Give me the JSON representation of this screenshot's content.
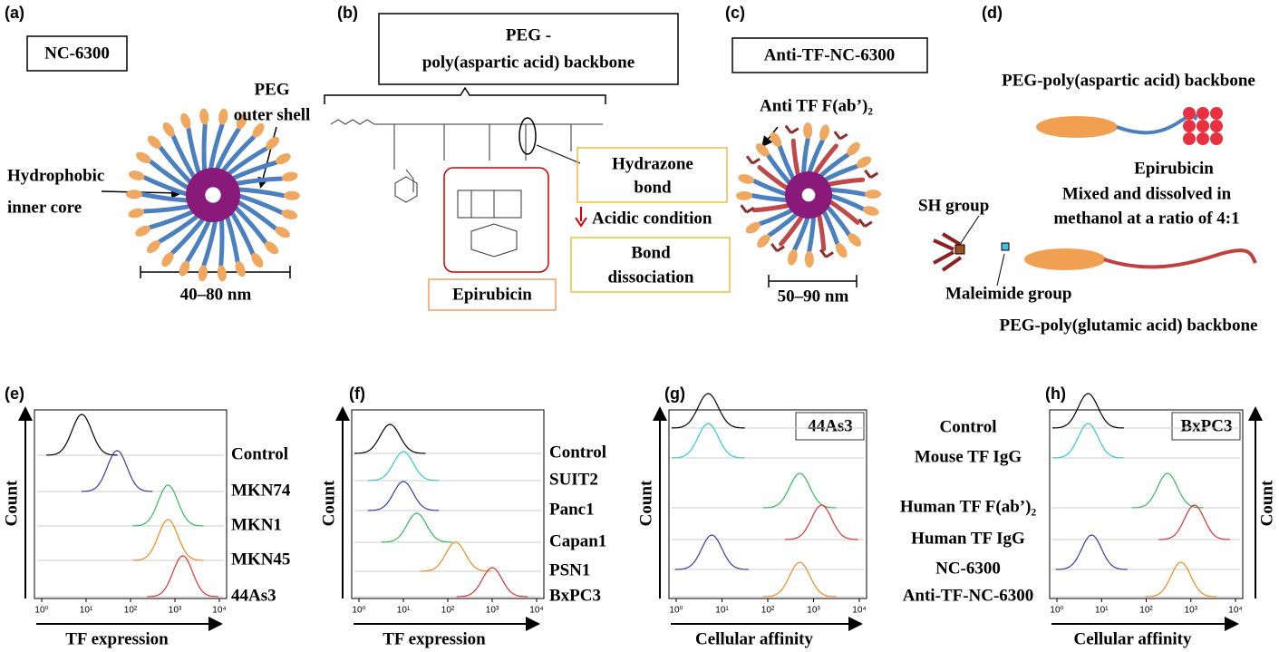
{
  "panel_letters": [
    "(a)",
    "(b)",
    "(c)",
    "(d)",
    "(e)",
    "(f)",
    "(g)",
    "(h)"
  ],
  "a": {
    "box": "NC-6300",
    "shell": [
      "PEG",
      "outer shell"
    ],
    "core": [
      "Hydrophobic",
      "inner core"
    ],
    "size": "40–80 nm"
  },
  "b": {
    "backbone": [
      "PEG -",
      "poly(aspartic acid) backbone"
    ],
    "bond": [
      "Hydrazone",
      "bond"
    ],
    "condition": "Acidic condition",
    "dissociation": [
      "Bond",
      "dissociation"
    ],
    "drug": "Epirubicin"
  },
  "c": {
    "box": "Anti-TF-NC-6300",
    "antibody": "Anti TF F(ab’)₂",
    "size": "50–90 nm"
  },
  "d": {
    "top": "PEG-poly(aspartic acid) backbone",
    "drug": "Epirubicin",
    "sh": "SH group",
    "mix": [
      "Mixed and dissolved in",
      "methanol at a ratio of 4:1"
    ],
    "maleimide": "Maleimide group",
    "bottom": "PEG-poly(glutamic acid) backbone"
  },
  "histograms": [
    {
      "type": "histogram",
      "ylabel": "Count",
      "xlabel": "TF expression",
      "xscale": "log",
      "xlim": [
        1,
        10000
      ],
      "xticks": [
        {
          "value": 1,
          "label": "10⁰"
        },
        {
          "value": 10,
          "label": "10¹"
        },
        {
          "value": 100,
          "label": "10²"
        },
        {
          "value": 1000,
          "label": "10³"
        },
        {
          "value": 10000,
          "label": "10⁴"
        }
      ],
      "traces": [
        {
          "name": "Control",
          "color": "#000000",
          "peak": 8
        },
        {
          "name": "MKN74",
          "color": "#3a3aa8",
          "peak": 50
        },
        {
          "name": "MKN1",
          "color": "#33bb55",
          "peak": 700
        },
        {
          "name": "MKN45",
          "color": "#f08a20",
          "peak": 700
        },
        {
          "name": "44As3",
          "color": "#dd3333",
          "peak": 1500
        }
      ]
    },
    {
      "type": "histogram",
      "ylabel": "Count",
      "xlabel": "TF expression",
      "xscale": "log",
      "xlim": [
        1,
        10000
      ],
      "xticks": [
        {
          "value": 1,
          "label": "10⁰"
        },
        {
          "value": 10,
          "label": "10¹"
        },
        {
          "value": 100,
          "label": "10²"
        },
        {
          "value": 1000,
          "label": "10³"
        },
        {
          "value": 10000,
          "label": "10⁴"
        }
      ],
      "traces": [
        {
          "name": "Control",
          "color": "#000000",
          "peak": 5
        },
        {
          "name": "SUIT2",
          "color": "#33cccc",
          "peak": 10
        },
        {
          "name": "Panc1",
          "color": "#3a3aa8",
          "peak": 10
        },
        {
          "name": "Capan1",
          "color": "#33bb55",
          "peak": 20
        },
        {
          "name": "PSN1",
          "color": "#f08a20",
          "peak": 150
        },
        {
          "name": "BxPC3",
          "color": "#dd3333",
          "peak": 1000
        }
      ]
    },
    {
      "type": "histogram",
      "ylabel": "Count",
      "xlabel": "Cellular affinity",
      "inset": "44As3",
      "xscale": "log",
      "xlim": [
        1,
        10000
      ],
      "xticks": [
        {
          "value": 1,
          "label": "10⁰"
        },
        {
          "value": 10,
          "label": "10¹"
        },
        {
          "value": 100,
          "label": "10²"
        },
        {
          "value": 1000,
          "label": "10³"
        },
        {
          "value": 10000,
          "label": "10⁴"
        }
      ],
      "traces": [
        {
          "name": "Control",
          "color": "#000000",
          "peak": 5
        },
        {
          "name": "Mouse TF IgG",
          "color": "#33cccc",
          "peak": 5
        },
        {
          "name": "Human TF F(ab’)₂",
          "color": "#33bb55",
          "peak": 500
        },
        {
          "name": "Human TF IgG",
          "color": "#dd3333",
          "peak": 1500
        },
        {
          "name": "NC-6300",
          "color": "#3a3aa8",
          "peak": 6
        },
        {
          "name": "Anti-TF-NC-6300",
          "color": "#f08a20",
          "peak": 500
        }
      ]
    },
    {
      "type": "histogram",
      "ylabel": "Count",
      "xlabel": "Cellular affinity",
      "inset": "BxPC3",
      "xscale": "log",
      "xlim": [
        1,
        10000
      ],
      "xticks": [
        {
          "value": 1,
          "label": "10⁰"
        },
        {
          "value": 10,
          "label": "10¹"
        },
        {
          "value": 100,
          "label": "10²"
        },
        {
          "value": 1000,
          "label": "10³"
        },
        {
          "value": 10000,
          "label": "10⁴"
        }
      ],
      "traces": [
        {
          "color": "#000000",
          "peak": 5
        },
        {
          "color": "#33cccc",
          "peak": 5
        },
        {
          "color": "#33bb55",
          "peak": 300
        },
        {
          "color": "#dd3333",
          "peak": 1200
        },
        {
          "color": "#3a3aa8",
          "peak": 6
        },
        {
          "color": "#f08a20",
          "peak": 600
        }
      ]
    }
  ]
}
